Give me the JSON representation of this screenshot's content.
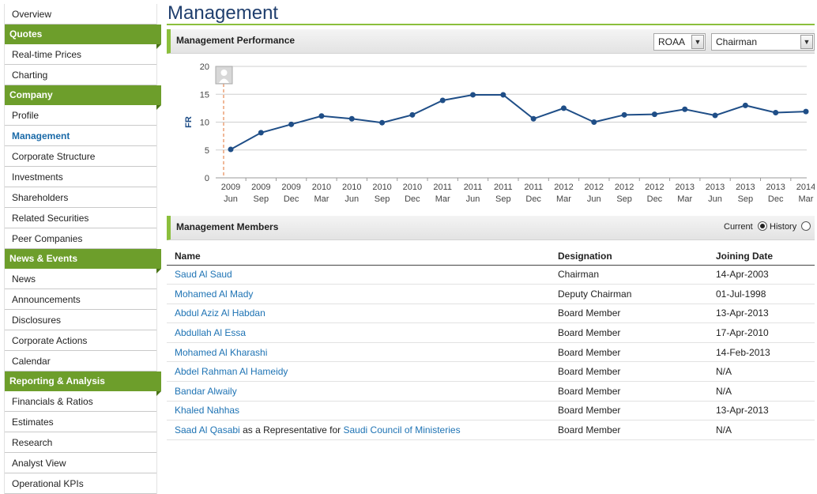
{
  "sidebar": {
    "top_item": "Overview",
    "sections": [
      {
        "heading": "Quotes",
        "items": [
          "Real-time Prices",
          "Charting"
        ]
      },
      {
        "heading": "Company",
        "items": [
          "Profile",
          "Management",
          "Corporate Structure",
          "Investments",
          "Shareholders",
          "Related Securities",
          "Peer Companies"
        ]
      },
      {
        "heading": "News & Events",
        "items": [
          "News",
          "Announcements",
          "Disclosures",
          "Corporate Actions",
          "Calendar"
        ]
      },
      {
        "heading": "Reporting & Analysis",
        "items": [
          "Financials & Ratios",
          "Estimates",
          "Research",
          "Analyst View",
          "Operational KPIs"
        ]
      }
    ],
    "active_item": "Management"
  },
  "page": {
    "title": "Management"
  },
  "performance": {
    "title": "Management Performance",
    "metric_select": "ROAA",
    "role_select": "Chairman"
  },
  "chart_data": {
    "type": "line",
    "ylabel": "FR",
    "ylim": [
      0,
      20
    ],
    "yticks": [
      0,
      5,
      10,
      15,
      20
    ],
    "x_years": [
      "2009",
      "2009",
      "2009",
      "2010",
      "2010",
      "2010",
      "2010",
      "2011",
      "2011",
      "2011",
      "2011",
      "2012",
      "2012",
      "2012",
      "2012",
      "2013",
      "2013",
      "2013",
      "2013",
      "2014"
    ],
    "x_months": [
      "Jun",
      "Sep",
      "Dec",
      "Mar",
      "Jun",
      "Sep",
      "Dec",
      "Mar",
      "Jun",
      "Sep",
      "Dec",
      "Mar",
      "Jun",
      "Sep",
      "Dec",
      "Mar",
      "Jun",
      "Sep",
      "Dec",
      "Mar"
    ],
    "values": [
      5.1,
      8.1,
      9.6,
      11.1,
      10.6,
      9.9,
      11.3,
      13.9,
      14.9,
      14.9,
      10.6,
      12.5,
      10.0,
      11.3,
      11.4,
      12.3,
      11.2,
      13.0,
      11.7,
      11.9
    ],
    "grid": true,
    "marker_index": 0
  },
  "members": {
    "title": "Management Members",
    "radio_current": "Current",
    "radio_history": "History",
    "columns": [
      "Name",
      "Designation",
      "Joining Date"
    ],
    "rows": [
      {
        "name": "Saud Al Saud",
        "designation": "Chairman",
        "date": "14-Apr-2003"
      },
      {
        "name": "Mohamed Al Mady",
        "designation": "Deputy Chairman",
        "date": "01-Jul-1998"
      },
      {
        "name": "Abdul Aziz Al Habdan",
        "designation": "Board Member",
        "date": "13-Apr-2013"
      },
      {
        "name": "Abdullah Al Essa",
        "designation": "Board Member",
        "date": "17-Apr-2010"
      },
      {
        "name": "Mohamed Al Kharashi",
        "designation": "Board Member",
        "date": "14-Feb-2013"
      },
      {
        "name": "Abdel Rahman Al Hameidy",
        "designation": "Board Member",
        "date": "N/A"
      },
      {
        "name": "Bandar Alwaily",
        "designation": "Board Member",
        "date": "N/A"
      },
      {
        "name": "Khaled Nahhas",
        "designation": "Board Member",
        "date": "13-Apr-2013"
      },
      {
        "name": "Saad Al Qasabi",
        "rep_text": "as a Representative for",
        "rep_org": "Saudi Council of Ministeries",
        "designation": "Board Member",
        "date": "N/A"
      }
    ]
  },
  "colors": {
    "accent": "#6d9e2b",
    "line": "#1f4e87",
    "link": "#1e73b4",
    "title": "#203f6e"
  }
}
